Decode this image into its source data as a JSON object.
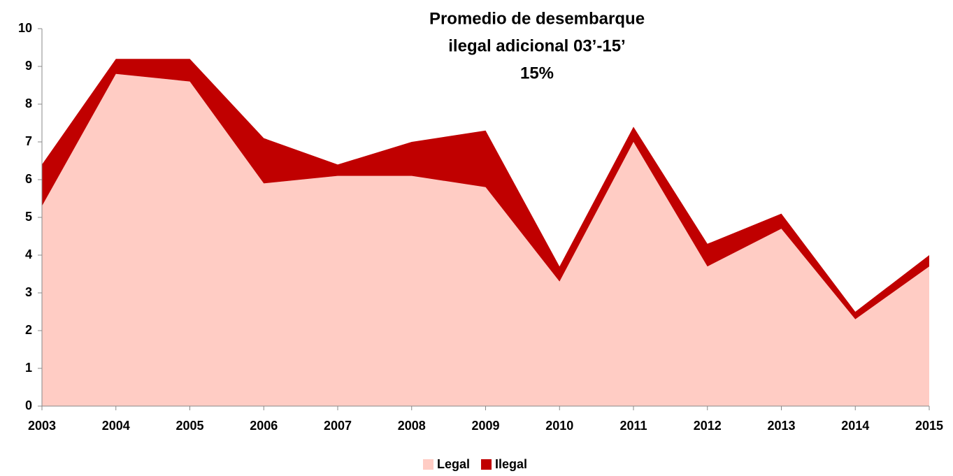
{
  "chart_data": {
    "type": "stacked_area",
    "title": [
      "Promedio de desembarque",
      "ilegal adicional 03’-15’",
      "15%"
    ],
    "categories": [
      "2003",
      "2004",
      "2005",
      "2006",
      "2007",
      "2008",
      "2009",
      "2010",
      "2011",
      "2012",
      "2013",
      "2014",
      "2015"
    ],
    "series": [
      {
        "name": "Legal",
        "color": "#ffccc4",
        "values": [
          5.3,
          8.8,
          8.6,
          5.9,
          6.1,
          6.1,
          5.8,
          3.3,
          7.0,
          3.7,
          4.7,
          2.3,
          3.7
        ]
      },
      {
        "name": "Ilegal",
        "color": "#c00000",
        "values": [
          1.1,
          0.4,
          0.6,
          1.2,
          0.3,
          0.9,
          1.5,
          0.4,
          0.4,
          0.6,
          0.4,
          0.2,
          0.3
        ]
      }
    ],
    "ylim": [
      0,
      10
    ],
    "yticks": [
      0,
      1,
      2,
      3,
      4,
      5,
      6,
      7,
      8,
      9,
      10
    ],
    "legend": "bottom"
  }
}
